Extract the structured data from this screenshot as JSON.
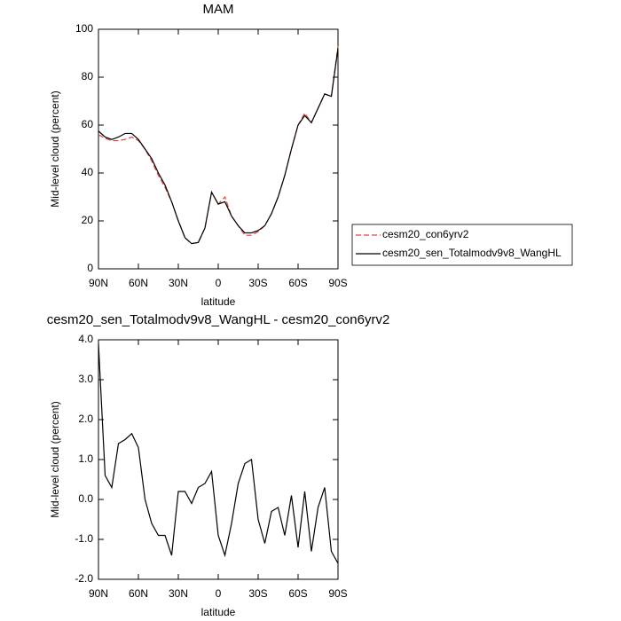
{
  "chart_data": [
    {
      "type": "line",
      "title": "MAM",
      "xlabel": "latitude",
      "ylabel": "Mid-level cloud (percent)",
      "x": [
        90,
        85,
        80,
        75,
        70,
        65,
        60,
        55,
        50,
        45,
        40,
        35,
        30,
        25,
        20,
        15,
        10,
        5,
        0,
        -5,
        -10,
        -15,
        -20,
        -25,
        -30,
        -35,
        -40,
        -45,
        -50,
        -55,
        -60,
        -65,
        -70,
        -75,
        -80,
        -85,
        -90
      ],
      "xlim": [
        90,
        -90
      ],
      "xticks": [
        {
          "value": 90,
          "label": "90N"
        },
        {
          "value": 60,
          "label": "60N"
        },
        {
          "value": 30,
          "label": "30N"
        },
        0,
        {
          "value": -30,
          "label": "30S"
        },
        {
          "value": -60,
          "label": "60S"
        },
        {
          "value": -90,
          "label": "90S"
        }
      ],
      "ylim": [
        0,
        100
      ],
      "yticks": [
        0,
        20,
        40,
        60,
        80,
        100
      ],
      "legend": "right",
      "series": [
        {
          "name": "cesm20_con6yrv2",
          "color": "#e8403a",
          "linestyle": "dashed",
          "values": [
            56,
            54.5,
            53.5,
            53.5,
            54,
            55,
            53.5,
            50,
            45,
            39,
            34,
            28,
            20,
            13,
            10.5,
            11,
            17,
            32,
            27,
            30,
            22,
            18,
            14,
            14,
            15.5,
            18,
            23,
            30,
            39,
            50,
            60,
            65,
            61,
            67,
            73,
            72,
            93
          ]
        },
        {
          "name": "cesm20_sen_Totalmodv9v8_WangHL",
          "color": "#000000",
          "linestyle": "solid",
          "values": [
            57.5,
            55,
            54,
            55,
            56.5,
            56.5,
            54,
            50,
            46,
            40,
            35,
            28,
            20,
            13,
            10.5,
            11,
            17,
            32,
            27,
            28,
            22,
            18,
            15,
            15,
            16,
            18,
            23,
            30,
            39,
            50,
            60,
            64,
            61,
            67,
            73,
            72,
            92
          ]
        }
      ]
    },
    {
      "type": "line",
      "title": "cesm20_sen_Totalmodv9v8_WangHL - cesm20_con6yrv2",
      "xlabel": "latitude",
      "ylabel": "Mid-level cloud (percent)",
      "x": [
        90,
        85,
        80,
        75,
        70,
        65,
        60,
        55,
        50,
        45,
        40,
        35,
        30,
        25,
        20,
        15,
        10,
        5,
        0,
        -5,
        -10,
        -15,
        -20,
        -25,
        -30,
        -35,
        -40,
        -45,
        -50,
        -55,
        -60,
        -65,
        -70,
        -75,
        -80,
        -85,
        -90
      ],
      "xlim": [
        90,
        -90
      ],
      "xticks": [
        {
          "value": 90,
          "label": "90N"
        },
        {
          "value": 60,
          "label": "60N"
        },
        {
          "value": 30,
          "label": "30N"
        },
        0,
        {
          "value": -30,
          "label": "30S"
        },
        {
          "value": -60,
          "label": "60S"
        },
        {
          "value": -90,
          "label": "90S"
        }
      ],
      "ylim": [
        -2,
        4
      ],
      "yticks": [
        {
          "value": -2,
          "label": "-2.0"
        },
        {
          "value": -1,
          "label": "-1.0"
        },
        {
          "value": 0,
          "label": "0.0"
        },
        {
          "value": 1,
          "label": "1.0"
        },
        {
          "value": 2,
          "label": "2.0"
        },
        {
          "value": 3,
          "label": "3.0"
        },
        {
          "value": 4,
          "label": "4.0"
        }
      ],
      "series": [
        {
          "color": "#000000",
          "linestyle": "solid",
          "values": [
            3.9,
            0.6,
            0.3,
            1.4,
            1.5,
            1.65,
            1.3,
            0,
            -0.6,
            -0.9,
            -0.9,
            -1.4,
            0.2,
            0.2,
            -0.1,
            0.3,
            0.4,
            0.7,
            -0.9,
            -1.4,
            -0.6,
            0.4,
            0.9,
            1,
            -0.5,
            -1.1,
            -0.3,
            -0.2,
            -0.9,
            0.1,
            -1.2,
            0.2,
            -1.3,
            -0.2,
            0.3,
            -1.3,
            -1.6
          ]
        }
      ]
    }
  ]
}
